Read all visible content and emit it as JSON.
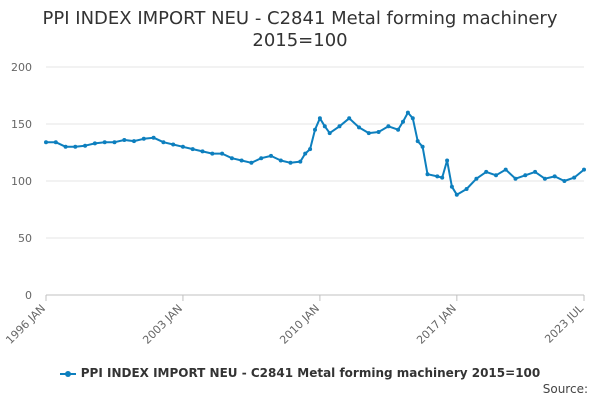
{
  "page": {
    "title_line1": "PPI INDEX IMPORT NEU - C2841 Metal forming machinery",
    "title_line2": "2015=100",
    "source_label": "Source:"
  },
  "chart_data": {
    "type": "line",
    "title": "PPI INDEX IMPORT NEU - C2841 Metal forming machinery 2015=100",
    "x_tick_labels": [
      "1996 JAN",
      "2003 JAN",
      "2010 JAN",
      "2017 JAN",
      "2023 JUL"
    ],
    "y_tick_labels": [
      "0",
      "50",
      "100",
      "150",
      "200"
    ],
    "ylim": [
      0,
      200
    ],
    "xlim": [
      "1996-01",
      "2023-07"
    ],
    "grid": "horizontal",
    "legend_placement": "bottom",
    "series": [
      {
        "name": "PPI INDEX IMPORT NEU - C2841 Metal forming machinery 2015=100",
        "color": "#0d7fbe",
        "x": [
          "1996-01",
          "1996-07",
          "1997-01",
          "1997-07",
          "1998-01",
          "1998-07",
          "1999-01",
          "1999-07",
          "2000-01",
          "2000-07",
          "2001-01",
          "2001-07",
          "2002-01",
          "2002-07",
          "2003-01",
          "2003-07",
          "2004-01",
          "2004-07",
          "2005-01",
          "2005-07",
          "2006-01",
          "2006-07",
          "2007-01",
          "2007-07",
          "2008-01",
          "2008-07",
          "2009-01",
          "2009-04",
          "2009-07",
          "2009-10",
          "2010-01",
          "2010-04",
          "2010-07",
          "2011-01",
          "2011-07",
          "2012-01",
          "2012-07",
          "2013-01",
          "2013-07",
          "2014-01",
          "2014-04",
          "2014-07",
          "2014-10",
          "2015-01",
          "2015-04",
          "2015-07",
          "2016-01",
          "2016-04",
          "2016-07",
          "2016-10",
          "2017-01",
          "2017-07",
          "2018-01",
          "2018-07",
          "2019-01",
          "2019-07",
          "2020-01",
          "2020-07",
          "2021-01",
          "2021-07",
          "2022-01",
          "2022-07",
          "2023-01",
          "2023-07"
        ],
        "values": [
          134,
          134,
          130,
          130,
          131,
          133,
          134,
          134,
          136,
          135,
          137,
          138,
          134,
          132,
          130,
          128,
          126,
          124,
          124,
          120,
          118,
          116,
          120,
          122,
          118,
          116,
          117,
          124,
          128,
          145,
          155,
          148,
          142,
          148,
          155,
          147,
          142,
          143,
          148,
          145,
          152,
          160,
          155,
          135,
          130,
          106,
          104,
          103,
          118,
          95,
          88,
          93,
          102,
          108,
          105,
          110,
          102,
          105,
          108,
          102,
          104,
          100,
          103,
          110
        ]
      }
    ]
  }
}
